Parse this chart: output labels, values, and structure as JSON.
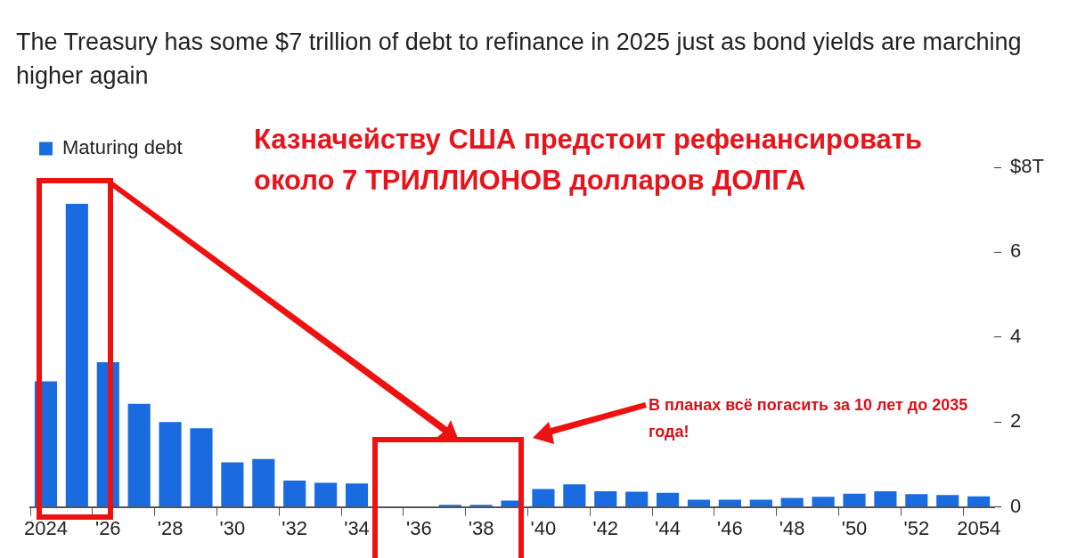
{
  "chart_data": {
    "type": "bar",
    "title": "The Treasury has some $7 trillion of debt to refinance in 2025 just as bond yields are marching higher again",
    "categories": [
      "2024",
      null,
      "'26",
      null,
      "'28",
      null,
      "'30",
      null,
      "'32",
      null,
      "'34",
      null,
      "'36",
      null,
      "'38",
      null,
      "'40",
      null,
      "'42",
      null,
      "'44",
      null,
      "'46",
      null,
      "'48",
      null,
      "'50",
      null,
      "'52",
      null,
      "2054"
    ],
    "series": [
      {
        "name": "Maturing debt",
        "color": "#1a6be0",
        "values": [
          2.96,
          7.14,
          3.41,
          2.43,
          2.0,
          1.85,
          1.05,
          1.13,
          0.62,
          0.57,
          0.55,
          null,
          null,
          0.05,
          0.05,
          0.15,
          0.42,
          0.53,
          0.37,
          0.36,
          0.33,
          0.17,
          0.17,
          0.17,
          0.21,
          0.24,
          0.31,
          0.37,
          0.3,
          0.28,
          0.25
        ]
      }
    ],
    "ylim": [
      0,
      8
    ],
    "yticks": [
      0,
      2,
      4,
      6,
      {
        "value": 8,
        "label": "$8T"
      }
    ],
    "legend": "top left",
    "annotations": [
      "Казначейству США предстоит рефенансировать около 7 ТРИЛЛИОНОВ долларов ДОЛГА",
      "В планах всё погасить за 10 лет до 2035 года!"
    ]
  }
}
